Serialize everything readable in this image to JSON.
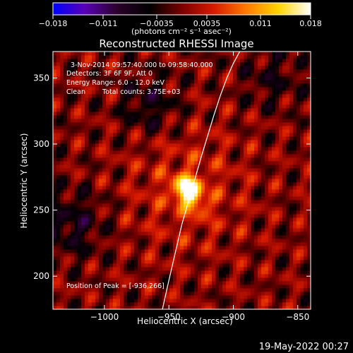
{
  "colorbar": {
    "tick_labels": [
      "−0.018",
      "−0.011",
      "−0.0035",
      "0.0035",
      "0.011",
      "0.018"
    ],
    "ticks": [
      -0.018,
      -0.011,
      -0.0035,
      0.0035,
      0.011,
      0.018
    ],
    "range": [
      -0.018,
      0.018
    ],
    "units_label": "(photons cm⁻² s⁻¹ asec⁻²)",
    "colors": [
      "#0000ff",
      "#5a00b4",
      "#2a002a",
      "#000000",
      "#7a0000",
      "#d81a00",
      "#ff7a00",
      "#ffd400",
      "#ffffff"
    ]
  },
  "annotations": {
    "time_range": "3-Nov-2014 09:57:40.000 to 09:58:40.000",
    "detectors": "Detectors: 3F 6F 9F, Att 0",
    "energy_range": "Energy Range: 6.0 - 12.0 keV",
    "method": "Clean",
    "total_counts": "Total counts: 3.75E+03",
    "peak_position": "Position of Peak = [-936,266]"
  },
  "timestamp": "19-May-2022 00:27",
  "chart_data": {
    "type": "heatmap",
    "title": "Reconstructed RHESSI Image",
    "xlabel": "Heliocentric X (arcsec)",
    "ylabel": "Heliocentric Y (arcsec)",
    "xlim": [
      -1040,
      -840
    ],
    "ylim": [
      175,
      370
    ],
    "x_ticks": [
      -1000,
      -950,
      -900,
      -850
    ],
    "x_tick_labels": [
      "−1000",
      "−950",
      "−900",
      "−850"
    ],
    "y_ticks": [
      200,
      250,
      300,
      350
    ],
    "y_tick_labels": [
      "200",
      "250",
      "300",
      "350"
    ],
    "peak": {
      "x": -936,
      "y": 266,
      "value": 0.018
    },
    "limb_curve": {
      "x": [
        -955,
        -950,
        -945,
        -940,
        -935,
        -930,
        -925,
        -920,
        -915,
        -910,
        -905,
        -900,
        -895
      ],
      "y": [
        175,
        197,
        218,
        239,
        256,
        273,
        290,
        306,
        322,
        337,
        350,
        361,
        370
      ]
    }
  }
}
